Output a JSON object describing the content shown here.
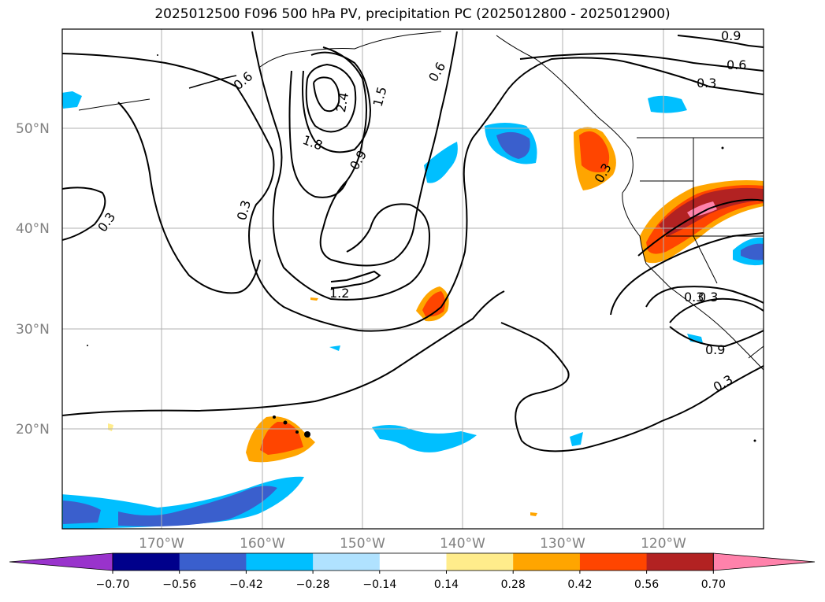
{
  "title": "2025012500 F096 500 hPa PV, precipitation PC (2025012800 - 2025012900)",
  "lat_labels": [
    "50°N",
    "40°N",
    "30°N",
    "20°N"
  ],
  "lon_labels": [
    "170°W",
    "160°W",
    "150°W",
    "140°W",
    "130°W",
    "120°W"
  ],
  "contour_labels": [
    "0.9",
    "0.6",
    "0.3",
    "1.5",
    "0.6",
    "2.4",
    "1.8",
    "0.9",
    "0.3",
    "0.3",
    "1.2",
    "0.3",
    "0.3",
    "0.3",
    "0.6",
    "0.3",
    "0.9"
  ],
  "colorbar": {
    "ticks": [
      "−0.70",
      "−0.56",
      "−0.42",
      "−0.28",
      "−0.14",
      "0.14",
      "0.28",
      "0.42",
      "0.56",
      "0.70"
    ],
    "colors": [
      "#9933cc",
      "#00008b",
      "#3a5fcd",
      "#00bfff",
      "#b0e2ff",
      "#ffffff",
      "#ffec8b",
      "#ffa500",
      "#ff4500",
      "#b22222",
      "#ff82ab"
    ]
  }
}
